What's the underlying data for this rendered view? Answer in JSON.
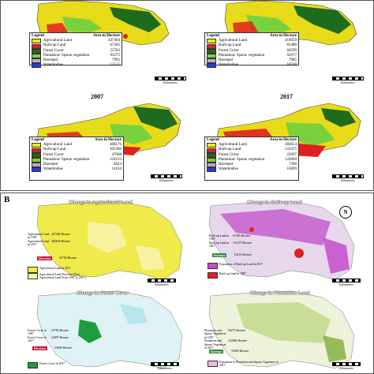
{
  "colors": {
    "agri": "#f5e90a",
    "builtup": "#e02020",
    "forest": "#1e6b1e",
    "plantation": "#79d23c",
    "barren": "#b9a7d6",
    "water": "#2a3fd0"
  },
  "panel_a": {
    "legend_title": "Legend",
    "legend_units": "Area in Hectare",
    "scale_label": "Kilometres",
    "maps": [
      {
        "year": "",
        "rows": [
          {
            "name": "Agricultural Land",
            "value": "447404"
          },
          {
            "name": "Built-up Land",
            "value": "67365"
          },
          {
            "name": "Forest Cover",
            "value": "55783"
          },
          {
            "name": "Plantation/ Sparse vegetation",
            "value": "93275"
          },
          {
            "name": "Bareland",
            "value": "7992"
          },
          {
            "name": "Waterbodies",
            "value": "12515"
          }
        ]
      },
      {
        "year": "",
        "rows": [
          {
            "name": "Agricultural Land",
            "value": "418059"
          },
          {
            "name": "Built-up Land",
            "value": "81488"
          },
          {
            "name": "Forest Cover",
            "value": "84599"
          },
          {
            "name": "Plantation/ Sparse vegetation",
            "value": "92977"
          },
          {
            "name": "Bareland",
            "value": "7985"
          },
          {
            "name": "Waterbodies",
            "value": "18748"
          }
        ]
      },
      {
        "year": "2007",
        "rows": [
          {
            "name": "Agricultural Land",
            "value": "408176"
          },
          {
            "name": "Built-up Land",
            "value": "105366"
          },
          {
            "name": "Forest Cover",
            "value": "47008"
          },
          {
            "name": "Plantation/ Sparse vegetation",
            "value": "124215"
          },
          {
            "name": "Bareland",
            "value": "6623"
          },
          {
            "name": "Waterbodies",
            "value": "14164"
          }
        ]
      },
      {
        "year": "2017",
        "rows": [
          {
            "name": "Agricultural Land",
            "value": "384654"
          },
          {
            "name": "Built-up Land",
            "value": "131475"
          },
          {
            "name": "Forest Cover",
            "value": "22097"
          },
          {
            "name": "Plantation/ Sparse vegetation",
            "value": "124960"
          },
          {
            "name": "Bareland",
            "value": "7390"
          },
          {
            "name": "Waterbodies",
            "value": "16699"
          }
        ]
      }
    ]
  },
  "panel_b": {
    "label": "B",
    "north": "N",
    "scale_label": "Kilometres",
    "maps": [
      {
        "title": "Change in Agricultural Land",
        "notes": [
          [
            "Agricultural Land in 1987",
            "447404 Hectare"
          ],
          [
            "Agricultural Land in 2017",
            "384654 Hectare"
          ]
        ],
        "decrease": "Decrease",
        "change": "62750 Hectare",
        "keys": [
          "Agricultural Land in 2017",
          "Agricultural Land Decrease (Non Agricultural Land From 1987 to 2017)"
        ]
      },
      {
        "title": "Change in Built-up Land",
        "notes": [
          [
            "Built-up Land in 1987",
            "67365 Hectare"
          ],
          [
            "Built-up Land in 2017",
            "131475 Hectare"
          ]
        ],
        "decrease": "Increase",
        "change": "64110 Hectare",
        "keys": [
          "Expansion of Built-up Land in 2017",
          "Built-up Land in 1987"
        ]
      },
      {
        "title": "Change in Forest Cover",
        "notes": [
          [
            "Forest Cover in 1987",
            "55783 Hectare"
          ],
          [
            "Forest Cover in 2017",
            "22097 Hectare"
          ]
        ],
        "decrease": "Decrease",
        "change": "33686 Hectare",
        "keys": [
          "Forest Cover in 2017"
        ]
      },
      {
        "title": "Change in Plantation Land",
        "notes": [
          [
            "Plantation and Sparse Vegetation in 1987",
            "93275 Hectare"
          ],
          [
            "Plantation and Sparse Vegetation in 2017",
            "124960 Hectare"
          ]
        ],
        "decrease": "Increase",
        "change": "31685 Hectare",
        "keys": [
          "Expansion of Plantation and Sparse Vegetation in 2017"
        ]
      }
    ]
  }
}
